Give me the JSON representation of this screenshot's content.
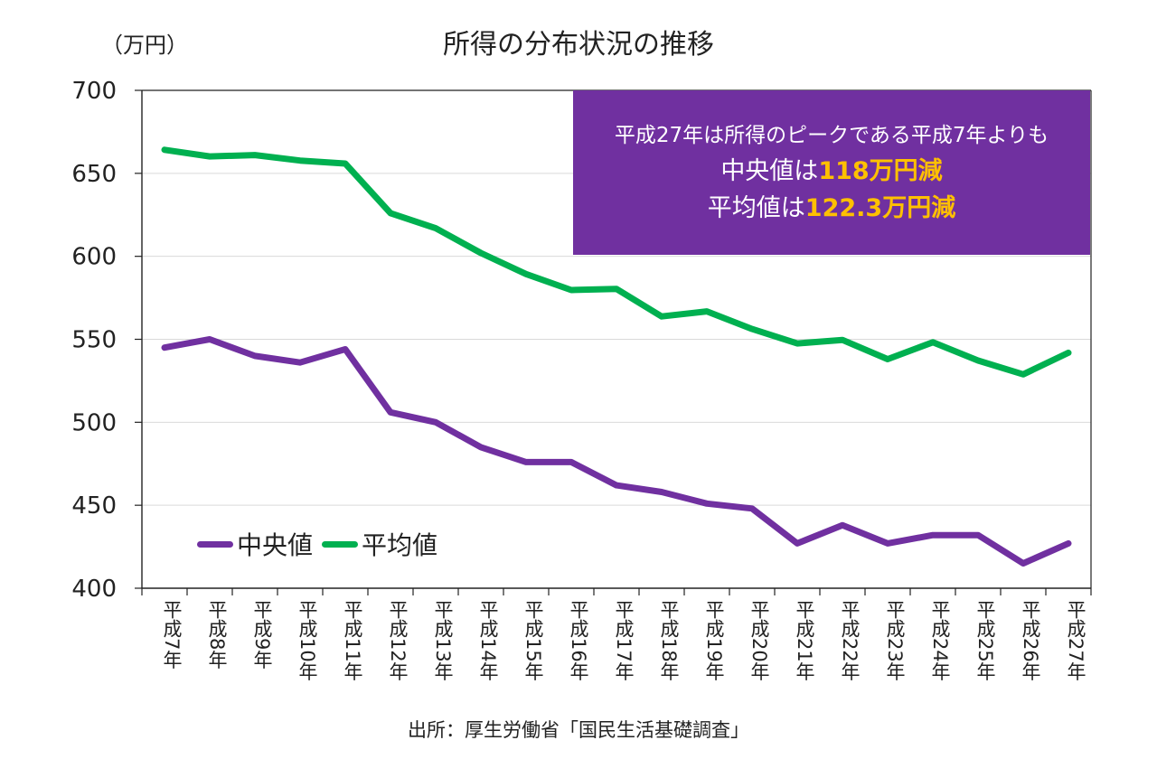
{
  "title": "所得の分布状況の推移",
  "unit": "（万円）",
  "source": "出所：厚生労働省「国民生活基礎調査」",
  "callout": {
    "line1": "平成27年は所得のピークである平成7年よりも",
    "line2_prefix": "中央値は",
    "line2_highlight": "118万円減",
    "line3_prefix": "平均値は",
    "line3_highlight": "122.3万円減"
  },
  "colors": {
    "median": "#7030a0",
    "mean": "#00b050",
    "callout_bg": "#7030a0",
    "highlight": "#ffc000"
  },
  "chart_data": {
    "type": "line",
    "categories": [
      "平成7年",
      "平成8年",
      "平成9年",
      "平成10年",
      "平成11年",
      "平成12年",
      "平成13年",
      "平成14年",
      "平成15年",
      "平成16年",
      "平成17年",
      "平成18年",
      "平成19年",
      "平成20年",
      "平成21年",
      "平成22年",
      "平成23年",
      "平成24年",
      "平成25年",
      "平成26年",
      "平成27年"
    ],
    "series": [
      {
        "name": "中央値",
        "values": [
          545,
          550,
          540,
          536,
          544,
          506,
          500,
          485,
          476,
          476,
          462,
          458,
          451,
          448,
          427,
          438,
          427,
          432,
          432,
          415,
          427
        ]
      },
      {
        "name": "平均値",
        "values": [
          664.2,
          660.2,
          661.0,
          657.7,
          655.9,
          626.0,
          616.9,
          602.0,
          589.3,
          579.7,
          580.4,
          563.8,
          566.8,
          556.2,
          547.5,
          549.6,
          538.0,
          548.2,
          537.2,
          528.9,
          541.9
        ]
      }
    ],
    "yticks": [
      400,
      450,
      500,
      550,
      600,
      650,
      700
    ],
    "ylim": [
      400,
      700
    ],
    "grid": true,
    "legend_position": "bottom-left"
  }
}
